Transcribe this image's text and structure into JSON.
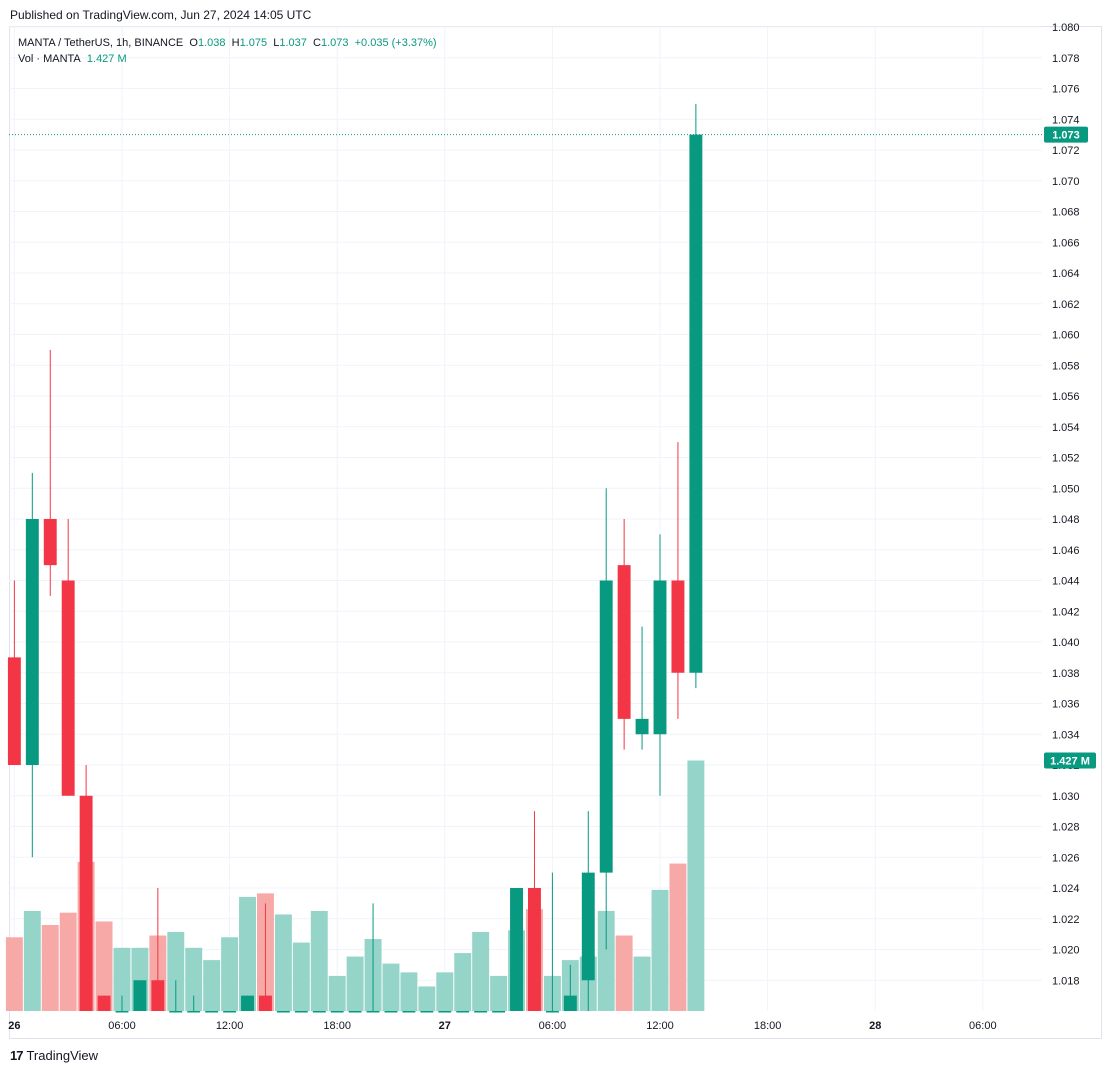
{
  "header": {
    "published": "Published on TradingView.com, Jun 27, 2024 14:05 UTC"
  },
  "legend": {
    "symbol": "MANTA / TetherUS, 1h, BINANCE",
    "o_label": "O",
    "o_value": "1.038",
    "h_label": "H",
    "h_value": "1.075",
    "l_label": "L",
    "l_value": "1.037",
    "c_label": "C",
    "c_value": "1.073",
    "change": "+0.035 (+3.37%)",
    "vol_label": "Vol · MANTA",
    "vol_value": "1.427 M"
  },
  "footer": {
    "brand": "TradingView",
    "logo_mark": "17"
  },
  "colors": {
    "up": "#089981",
    "down": "#f23645",
    "up_vol": "#94d4c9",
    "down_vol": "#f7a9a7",
    "grid": "#f0f3fa",
    "axis_text": "#131722"
  },
  "chart_data": {
    "type": "candlestick",
    "symbol": "MANTA / TetherUS",
    "interval": "1h",
    "exchange": "BINANCE",
    "ylim": [
      1.016,
      1.08
    ],
    "y_ticks": [
      "1.018",
      "1.020",
      "1.022",
      "1.024",
      "1.026",
      "1.028",
      "1.030",
      "1.032",
      "1.034",
      "1.036",
      "1.038",
      "1.040",
      "1.042",
      "1.044",
      "1.046",
      "1.048",
      "1.050",
      "1.052",
      "1.054",
      "1.056",
      "1.058",
      "1.060",
      "1.062",
      "1.064",
      "1.066",
      "1.068",
      "1.070",
      "1.072",
      "1.074",
      "1.076",
      "1.078",
      "1.080"
    ],
    "x_ticks": [
      {
        "label": "26",
        "bold": true,
        "hour": 0
      },
      {
        "label": "06:00",
        "bold": false,
        "hour": 6
      },
      {
        "label": "12:00",
        "bold": false,
        "hour": 12
      },
      {
        "label": "18:00",
        "bold": false,
        "hour": 18
      },
      {
        "label": "27",
        "bold": true,
        "hour": 24
      },
      {
        "label": "06:00",
        "bold": false,
        "hour": 30
      },
      {
        "label": "12:00",
        "bold": false,
        "hour": 36
      },
      {
        "label": "18:00",
        "bold": false,
        "hour": 42
      },
      {
        "label": "28",
        "bold": true,
        "hour": 48
      },
      {
        "label": "06:00",
        "bold": false,
        "hour": 54
      }
    ],
    "x_hour_range": [
      -0.3,
      57.3
    ],
    "last_price": "1.073",
    "last_volume": "1.427 M",
    "volume_max": 1.43,
    "candles": [
      {
        "t": 0,
        "o": 1.039,
        "h": 1.044,
        "l": 1.032,
        "c": 1.032,
        "v": 0.42
      },
      {
        "t": 1,
        "o": 1.032,
        "h": 1.051,
        "l": 1.026,
        "c": 1.048,
        "v": 0.57
      },
      {
        "t": 2,
        "o": 1.048,
        "h": 1.059,
        "l": 1.043,
        "c": 1.045,
        "v": 0.49
      },
      {
        "t": 3,
        "o": 1.044,
        "h": 1.048,
        "l": 1.03,
        "c": 1.03,
        "v": 0.56
      },
      {
        "t": 4,
        "o": 1.03,
        "h": 1.032,
        "l": 1.016,
        "c": 1.016,
        "v": 0.85
      },
      {
        "t": 5,
        "o": 1.017,
        "h": 1.017,
        "l": 1.016,
        "c": 1.016,
        "v": 0.51
      },
      {
        "t": 6,
        "o": 1.016,
        "h": 1.017,
        "l": 1.016,
        "c": 1.016,
        "v": 0.36
      },
      {
        "t": 7,
        "o": 1.016,
        "h": 1.018,
        "l": 1.016,
        "c": 1.018,
        "v": 0.36
      },
      {
        "t": 8,
        "o": 1.018,
        "h": 1.024,
        "l": 1.016,
        "c": 1.016,
        "v": 0.43
      },
      {
        "t": 9,
        "o": 1.016,
        "h": 1.018,
        "l": 1.016,
        "c": 1.016,
        "v": 0.45
      },
      {
        "t": 10,
        "o": 1.016,
        "h": 1.017,
        "l": 1.016,
        "c": 1.016,
        "v": 0.36
      },
      {
        "t": 11,
        "o": 1.016,
        "h": 1.016,
        "l": 1.016,
        "c": 1.016,
        "v": 0.29
      },
      {
        "t": 12,
        "o": 1.016,
        "h": 1.016,
        "l": 1.016,
        "c": 1.016,
        "v": 0.42
      },
      {
        "t": 13,
        "o": 1.016,
        "h": 1.017,
        "l": 1.016,
        "c": 1.017,
        "v": 0.65
      },
      {
        "t": 14,
        "o": 1.017,
        "h": 1.023,
        "l": 1.016,
        "c": 1.016,
        "v": 0.67
      },
      {
        "t": 15,
        "o": 1.016,
        "h": 1.016,
        "l": 1.016,
        "c": 1.016,
        "v": 0.55
      },
      {
        "t": 16,
        "o": 1.016,
        "h": 1.016,
        "l": 1.016,
        "c": 1.016,
        "v": 0.39
      },
      {
        "t": 17,
        "o": 1.016,
        "h": 1.016,
        "l": 1.016,
        "c": 1.016,
        "v": 0.57
      },
      {
        "t": 18,
        "o": 1.016,
        "h": 1.016,
        "l": 1.016,
        "c": 1.016,
        "v": 0.2
      },
      {
        "t": 19,
        "o": 1.016,
        "h": 1.016,
        "l": 1.016,
        "c": 1.016,
        "v": 0.31
      },
      {
        "t": 20,
        "o": 1.016,
        "h": 1.023,
        "l": 1.016,
        "c": 1.016,
        "v": 0.41
      },
      {
        "t": 21,
        "o": 1.016,
        "h": 1.016,
        "l": 1.016,
        "c": 1.016,
        "v": 0.27
      },
      {
        "t": 22,
        "o": 1.016,
        "h": 1.016,
        "l": 1.016,
        "c": 1.016,
        "v": 0.22
      },
      {
        "t": 23,
        "o": 1.016,
        "h": 1.016,
        "l": 1.016,
        "c": 1.016,
        "v": 0.14
      },
      {
        "t": 24,
        "o": 1.016,
        "h": 1.016,
        "l": 1.016,
        "c": 1.016,
        "v": 0.22
      },
      {
        "t": 25,
        "o": 1.016,
        "h": 1.016,
        "l": 1.016,
        "c": 1.016,
        "v": 0.33
      },
      {
        "t": 26,
        "o": 1.016,
        "h": 1.016,
        "l": 1.016,
        "c": 1.016,
        "v": 0.45
      },
      {
        "t": 27,
        "o": 1.016,
        "h": 1.016,
        "l": 1.016,
        "c": 1.016,
        "v": 0.2
      },
      {
        "t": 28,
        "o": 1.016,
        "h": 1.024,
        "l": 1.016,
        "c": 1.024,
        "v": 0.46
      },
      {
        "t": 29,
        "o": 1.024,
        "h": 1.029,
        "l": 1.016,
        "c": 1.016,
        "v": 0.58
      },
      {
        "t": 30,
        "o": 1.016,
        "h": 1.025,
        "l": 1.016,
        "c": 1.016,
        "v": 0.2
      },
      {
        "t": 31,
        "o": 1.016,
        "h": 1.019,
        "l": 1.016,
        "c": 1.017,
        "v": 0.29
      },
      {
        "t": 32,
        "o": 1.018,
        "h": 1.029,
        "l": 1.016,
        "c": 1.025,
        "v": 0.31
      },
      {
        "t": 33,
        "o": 1.025,
        "h": 1.05,
        "l": 1.02,
        "c": 1.044,
        "v": 0.57
      },
      {
        "t": 34,
        "o": 1.045,
        "h": 1.048,
        "l": 1.033,
        "c": 1.035,
        "v": 0.43
      },
      {
        "t": 35,
        "o": 1.034,
        "h": 1.041,
        "l": 1.033,
        "c": 1.035,
        "v": 0.31
      },
      {
        "t": 36,
        "o": 1.034,
        "h": 1.047,
        "l": 1.03,
        "c": 1.044,
        "v": 0.69
      },
      {
        "t": 37,
        "o": 1.044,
        "h": 1.053,
        "l": 1.035,
        "c": 1.038,
        "v": 0.84
      },
      {
        "t": 38,
        "o": 1.038,
        "h": 1.075,
        "l": 1.037,
        "c": 1.073,
        "v": 1.427
      }
    ]
  }
}
